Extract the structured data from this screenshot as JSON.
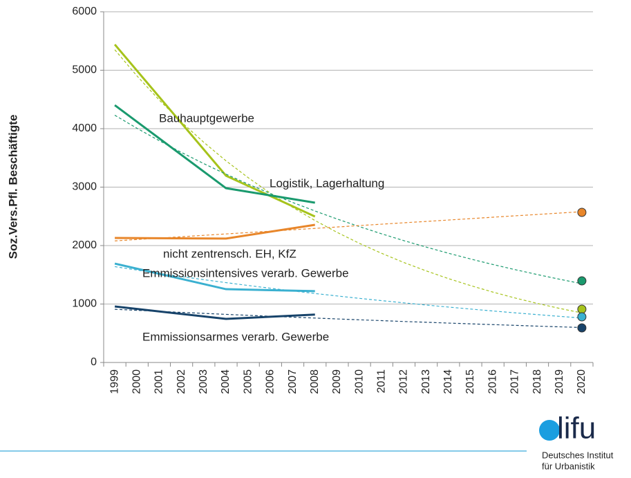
{
  "chart_data": {
    "type": "line",
    "ylabel": "Soz.Vers.Pfl. Beschäftigte",
    "xlim": [
      1998.5,
      2020.5
    ],
    "xticks": [
      1999,
      2000,
      2001,
      2002,
      2003,
      2004,
      2005,
      2006,
      2007,
      2008,
      2009,
      2010,
      2011,
      2012,
      2013,
      2014,
      2015,
      2016,
      2017,
      2018,
      2019,
      2020
    ],
    "ylim": [
      0,
      6000
    ],
    "yticks": [
      0,
      1000,
      2000,
      3000,
      4000,
      5000,
      6000
    ],
    "grid": true,
    "series": [
      {
        "name": "Bauhauptgewerbe",
        "color": "#a6c31b",
        "x": [
          1999,
          2004,
          2008
        ],
        "values": [
          5440,
          3195,
          2497
        ],
        "forecast_x": 2020,
        "forecast": 911,
        "trend": [
          5350,
          4901,
          4489,
          4112,
          3767,
          3450,
          3161,
          2895,
          2652,
          2429,
          2225,
          2038,
          1867,
          1710,
          1567,
          1435,
          1315,
          1204,
          1103,
          1010,
          925,
          848
        ]
      },
      {
        "name": "Logistik, Lagerhaltung",
        "color": "#1a9a6e",
        "x": [
          1999,
          2004,
          2008
        ],
        "values": [
          4402,
          2982,
          2734
        ],
        "forecast_x": 2020,
        "forecast": 1396,
        "trend": [
          4230,
          4006,
          3794,
          3593,
          3402,
          3222,
          3051,
          2890,
          2737,
          2592,
          2454,
          2324,
          2201,
          2084,
          1974,
          1869,
          1770,
          1676,
          1588,
          1504,
          1424,
          1348
        ]
      },
      {
        "name": "nicht zentrensch. EH, KfZ",
        "color": "#e8862a",
        "x": [
          1999,
          2004,
          2008
        ],
        "values": [
          2130,
          2120,
          2355
        ],
        "forecast_x": 2020,
        "forecast": 2568,
        "trend": [
          2080,
          2104,
          2128,
          2151,
          2175,
          2199,
          2223,
          2247,
          2270,
          2294,
          2318,
          2342,
          2366,
          2390,
          2413,
          2437,
          2461,
          2485,
          2509,
          2532,
          2556,
          2580
        ]
      },
      {
        "name": "Emmissionsintensives verarb. Gewerbe",
        "color": "#3ab0d0",
        "x": [
          1999,
          2004,
          2008
        ],
        "values": [
          1692,
          1254,
          1220
        ],
        "forecast_x": 2020,
        "forecast": 781,
        "trend": [
          1640,
          1581,
          1524,
          1470,
          1417,
          1366,
          1317,
          1270,
          1224,
          1180,
          1138,
          1097,
          1058,
          1020,
          983,
          948,
          914,
          881,
          849,
          819,
          789,
          761
        ]
      },
      {
        "name": "Emmissionsarmes verarb. Gewerbe",
        "color": "#17436a",
        "x": [
          1999,
          2004,
          2008
        ],
        "values": [
          958,
          745,
          820
        ],
        "forecast_x": 2020,
        "forecast": 592,
        "trend": [
          910,
          892,
          874,
          857,
          840,
          823,
          807,
          791,
          775,
          760,
          745,
          730,
          716,
          701,
          688,
          674,
          661,
          648,
          635,
          622,
          610,
          598
        ]
      }
    ]
  },
  "logo": {
    "mark": "lifu",
    "line1": "Deutsches Institut",
    "line2": "für Urbanistik"
  }
}
